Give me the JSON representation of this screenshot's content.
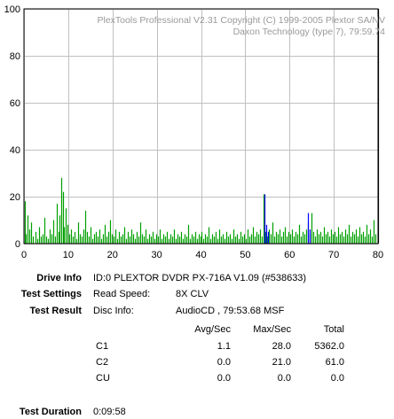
{
  "chart_data": {
    "type": "bar",
    "xlim": [
      0,
      80
    ],
    "ylim": [
      0,
      100
    ],
    "x_ticks": [
      0,
      10,
      20,
      30,
      40,
      50,
      60,
      70,
      80
    ],
    "y_ticks": [
      0,
      20,
      40,
      60,
      80,
      100
    ],
    "grid": true,
    "end_marker_x": 79.9,
    "series": [
      {
        "color": "#00a000",
        "values": [
          [
            0.2,
            18
          ],
          [
            0.5,
            4
          ],
          [
            0.9,
            12
          ],
          [
            1.3,
            6
          ],
          [
            1.7,
            9
          ],
          [
            2.1,
            3
          ],
          [
            2.6,
            5
          ],
          [
            3.0,
            2
          ],
          [
            3.4,
            7
          ],
          [
            3.9,
            3
          ],
          [
            4.3,
            4
          ],
          [
            4.7,
            11
          ],
          [
            5.1,
            3
          ],
          [
            5.5,
            2
          ],
          [
            5.9,
            6
          ],
          [
            6.3,
            4
          ],
          [
            6.7,
            10
          ],
          [
            7.1,
            3
          ],
          [
            7.5,
            17
          ],
          [
            7.8,
            5
          ],
          [
            8.1,
            12
          ],
          [
            8.5,
            28
          ],
          [
            8.8,
            22
          ],
          [
            9.1,
            7
          ],
          [
            9.4,
            15
          ],
          [
            9.8,
            8
          ],
          [
            10.2,
            4
          ],
          [
            10.6,
            6
          ],
          [
            11.0,
            3
          ],
          [
            11.4,
            5
          ],
          [
            11.8,
            2
          ],
          [
            12.2,
            9
          ],
          [
            12.6,
            4
          ],
          [
            13.0,
            3
          ],
          [
            13.4,
            6
          ],
          [
            13.8,
            14
          ],
          [
            14.2,
            5
          ],
          [
            14.6,
            3
          ],
          [
            15.0,
            7
          ],
          [
            15.4,
            2
          ],
          [
            15.8,
            4
          ],
          [
            16.2,
            5
          ],
          [
            16.6,
            3
          ],
          [
            17.0,
            6
          ],
          [
            17.4,
            2
          ],
          [
            17.8,
            4
          ],
          [
            18.2,
            8
          ],
          [
            18.6,
            3
          ],
          [
            19.0,
            5
          ],
          [
            19.4,
            10
          ],
          [
            19.8,
            4
          ],
          [
            20.2,
            3
          ],
          [
            20.6,
            6
          ],
          [
            21.0,
            2
          ],
          [
            21.4,
            5
          ],
          [
            21.8,
            3
          ],
          [
            22.2,
            4
          ],
          [
            22.6,
            7
          ],
          [
            23.0,
            2
          ],
          [
            23.4,
            5
          ],
          [
            23.8,
            3
          ],
          [
            24.2,
            6
          ],
          [
            24.6,
            4
          ],
          [
            25.0,
            2
          ],
          [
            25.4,
            5
          ],
          [
            25.8,
            3
          ],
          [
            26.2,
            9
          ],
          [
            26.6,
            4
          ],
          [
            27.0,
            3
          ],
          [
            27.4,
            6
          ],
          [
            27.8,
            2
          ],
          [
            28.2,
            4
          ],
          [
            28.6,
            3
          ],
          [
            29.0,
            5
          ],
          [
            29.4,
            2
          ],
          [
            29.8,
            4
          ],
          [
            30.2,
            3
          ],
          [
            30.6,
            6
          ],
          [
            31.0,
            2
          ],
          [
            31.4,
            4
          ],
          [
            31.8,
            3
          ],
          [
            32.2,
            5
          ],
          [
            32.6,
            2
          ],
          [
            33.0,
            4
          ],
          [
            33.4,
            3
          ],
          [
            33.8,
            6
          ],
          [
            34.2,
            2
          ],
          [
            34.6,
            4
          ],
          [
            35.0,
            3
          ],
          [
            35.4,
            5
          ],
          [
            35.8,
            2
          ],
          [
            36.2,
            4
          ],
          [
            36.6,
            3
          ],
          [
            37.0,
            8
          ],
          [
            37.4,
            2
          ],
          [
            37.8,
            4
          ],
          [
            38.2,
            3
          ],
          [
            38.6,
            5
          ],
          [
            39.0,
            2
          ],
          [
            39.4,
            4
          ],
          [
            39.8,
            3
          ],
          [
            40.2,
            5
          ],
          [
            40.6,
            2
          ],
          [
            41.0,
            4
          ],
          [
            41.4,
            3
          ],
          [
            41.8,
            7
          ],
          [
            42.2,
            2
          ],
          [
            42.6,
            4
          ],
          [
            43.0,
            3
          ],
          [
            43.4,
            5
          ],
          [
            43.8,
            2
          ],
          [
            44.2,
            6
          ],
          [
            44.6,
            3
          ],
          [
            45.0,
            4
          ],
          [
            45.4,
            2
          ],
          [
            45.8,
            5
          ],
          [
            46.2,
            3
          ],
          [
            46.6,
            4
          ],
          [
            47.0,
            2
          ],
          [
            47.4,
            6
          ],
          [
            47.8,
            3
          ],
          [
            48.2,
            4
          ],
          [
            48.6,
            2
          ],
          [
            49.0,
            5
          ],
          [
            49.4,
            3
          ],
          [
            49.8,
            4
          ],
          [
            50.2,
            2
          ],
          [
            50.6,
            6
          ],
          [
            51.0,
            3
          ],
          [
            51.4,
            4
          ],
          [
            51.8,
            7
          ],
          [
            52.2,
            3
          ],
          [
            52.6,
            5
          ],
          [
            53.0,
            4
          ],
          [
            53.4,
            6
          ],
          [
            53.8,
            3
          ],
          [
            54.2,
            21
          ],
          [
            54.6,
            5
          ],
          [
            55.0,
            3
          ],
          [
            55.4,
            6
          ],
          [
            55.8,
            4
          ],
          [
            56.2,
            9
          ],
          [
            56.6,
            3
          ],
          [
            57.0,
            5
          ],
          [
            57.4,
            4
          ],
          [
            57.8,
            6
          ],
          [
            58.2,
            3
          ],
          [
            58.6,
            5
          ],
          [
            59.0,
            7
          ],
          [
            59.4,
            3
          ],
          [
            59.8,
            5
          ],
          [
            60.2,
            4
          ],
          [
            60.6,
            6
          ],
          [
            61.0,
            3
          ],
          [
            61.4,
            5
          ],
          [
            61.8,
            4
          ],
          [
            62.2,
            8
          ],
          [
            62.6,
            3
          ],
          [
            63.0,
            5
          ],
          [
            63.4,
            4
          ],
          [
            63.8,
            6
          ],
          [
            64.2,
            9
          ],
          [
            64.6,
            4
          ],
          [
            65.0,
            13
          ],
          [
            65.4,
            5
          ],
          [
            65.8,
            3
          ],
          [
            66.2,
            6
          ],
          [
            66.6,
            4
          ],
          [
            67.0,
            5
          ],
          [
            67.4,
            3
          ],
          [
            67.8,
            7
          ],
          [
            68.2,
            4
          ],
          [
            68.6,
            5
          ],
          [
            69.0,
            3
          ],
          [
            69.4,
            6
          ],
          [
            69.8,
            4
          ],
          [
            70.2,
            5
          ],
          [
            70.6,
            3
          ],
          [
            71.0,
            7
          ],
          [
            71.4,
            4
          ],
          [
            71.8,
            5
          ],
          [
            72.2,
            3
          ],
          [
            72.6,
            6
          ],
          [
            73.0,
            4
          ],
          [
            73.4,
            8
          ],
          [
            73.8,
            3
          ],
          [
            74.2,
            5
          ],
          [
            74.6,
            4
          ],
          [
            75.0,
            6
          ],
          [
            75.4,
            3
          ],
          [
            75.8,
            7
          ],
          [
            76.2,
            4
          ],
          [
            76.6,
            5
          ],
          [
            77.0,
            3
          ],
          [
            77.4,
            8
          ],
          [
            77.8,
            4
          ],
          [
            78.2,
            6
          ],
          [
            78.6,
            3
          ],
          [
            79.0,
            10
          ],
          [
            79.4,
            4
          ]
        ]
      },
      {
        "color": "#0000ff",
        "values": [
          [
            54.4,
            21
          ],
          [
            54.7,
            8
          ],
          [
            55.1,
            5
          ],
          [
            64.1,
            13
          ],
          [
            64.5,
            6
          ]
        ]
      }
    ]
  },
  "watermark": {
    "line1": "PlexTools Professional V2.31 Copyright (C) 1999-2005 Plextor SA/NV",
    "line2": "Daxon Technology  (type 7), 79:59.74"
  },
  "info": {
    "drive_info_label": "Drive Info",
    "drive_info_value": "ID:0 PLEXTOR DVDR PX-716A V1.09 (#538633)",
    "test_settings_label": "Test Settings",
    "read_speed_label": "Read Speed:",
    "read_speed_value": "8X CLV",
    "test_result_label": "Test Result",
    "disc_info_label": "Disc Info:",
    "disc_info_value": "AudioCD , 79:53.68 MSF",
    "test_duration_label": "Test Duration",
    "test_duration_value": "0:09:58"
  },
  "results": {
    "headers": [
      "Avg/Sec",
      "Max/Sec",
      "Total"
    ],
    "rows": [
      {
        "name": "C1",
        "avg": "1.1",
        "max": "28.0",
        "total": "5362.0"
      },
      {
        "name": "C2",
        "avg": "0.0",
        "max": "21.0",
        "total": "61.0"
      },
      {
        "name": "CU",
        "avg": "0.0",
        "max": "0.0",
        "total": "0.0"
      }
    ]
  }
}
